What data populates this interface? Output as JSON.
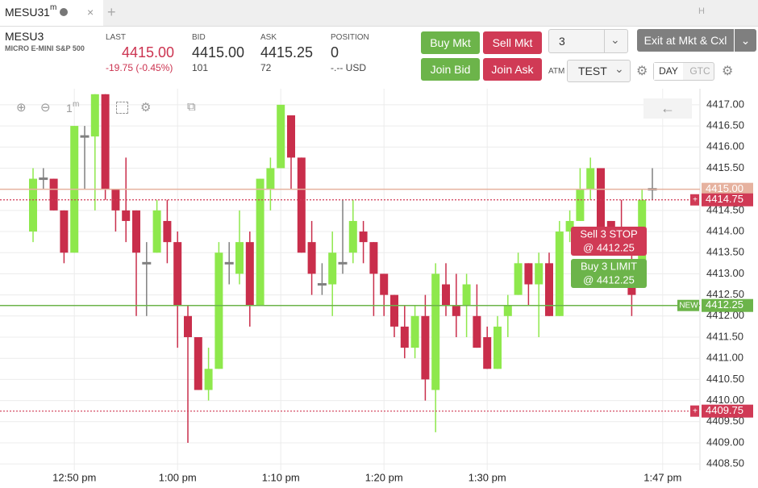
{
  "tab": {
    "symbol": "MESU3",
    "interval": "1",
    "unit": "m",
    "hotkey": "H"
  },
  "quote": {
    "symbol": "MESU3",
    "description": "MICRO E-MINI S&P 500",
    "last": {
      "label": "LAST",
      "value": "4415.00",
      "change": "-19.75 (-0.45%)"
    },
    "bid": {
      "label": "BID",
      "value": "4415.00",
      "size": "101"
    },
    "ask": {
      "label": "ASK",
      "value": "4415.25",
      "size": "72"
    },
    "position": {
      "label": "POSITION",
      "value": "0",
      "pnl": "-.-- USD"
    }
  },
  "buttons": {
    "buy_mkt": "Buy Mkt",
    "sell_mkt": "Sell Mkt",
    "quantity": "3",
    "exit": "Exit at Mkt & Cxl",
    "join_bid": "Join Bid",
    "join_ask": "Join Ask",
    "atm_label": "ATM",
    "atm": "TEST",
    "day": "DAY",
    "gtc": "GTC"
  },
  "toolbar": {
    "interval": "1",
    "unit": "m"
  },
  "chart_data": {
    "type": "candlestick",
    "up_color": "#8ee84c",
    "down_color": "#c92e4b",
    "doji_color": "#808080",
    "grid": true,
    "categories": [
      null,
      null,
      null,
      null,
      "12:50 pm",
      null,
      null,
      null,
      null,
      null,
      null,
      null,
      null,
      null,
      "1:00 pm",
      null,
      null,
      null,
      null,
      null,
      null,
      null,
      null,
      null,
      "1:10 pm",
      null,
      null,
      null,
      null,
      null,
      null,
      null,
      null,
      null,
      "1:20 pm",
      null,
      null,
      null,
      null,
      null,
      null,
      null,
      null,
      null,
      "1:30 pm",
      null,
      null,
      null,
      null,
      null,
      null,
      null,
      null,
      null,
      null,
      null,
      null,
      null,
      null,
      null,
      null,
      "1:47 pm"
    ],
    "open": [
      4414.0,
      4415.25,
      4415.25,
      4414.5,
      4413.5,
      4416.25,
      4416.25,
      4417.25,
      4415.0,
      4414.5,
      4414.5,
      4413.25,
      4413.5,
      4414.25,
      4413.75,
      4412.0,
      4411.5,
      4410.25,
      4410.75,
      4413.25,
      4413.0,
      4413.75,
      4412.25,
      4415.0,
      4415.5,
      4416.75,
      4415.75,
      4413.75,
      4412.75,
      4412.75,
      4413.25,
      4413.5,
      4414.0,
      4413.75,
      4413.0,
      4412.5,
      4411.75,
      4411.25,
      4412.0,
      4410.25,
      4412.75,
      4412.25,
      4412.25,
      4412.0,
      4411.5,
      4410.75,
      4412.0,
      4412.5,
      4413.25,
      4412.75,
      4413.25,
      4412.0,
      4414.0,
      4414.25,
      4415.0,
      4415.5,
      4414.25,
      4414.0,
      4413.25,
      4413.25,
      4415.0,
      null
    ],
    "high": [
      4415.5,
      4415.5,
      4415.25,
      4414.5,
      4416.5,
      4416.5,
      4417.25,
      4417.25,
      4415.0,
      4415.75,
      4414.5,
      4413.75,
      4414.75,
      4414.75,
      4414.0,
      4412.25,
      4411.5,
      4411.25,
      4413.75,
      4413.75,
      4414.5,
      4414.0,
      4415.25,
      4415.75,
      4417.0,
      4416.75,
      4415.75,
      4414.25,
      4413.25,
      4414.0,
      4414.75,
      4414.75,
      4414.25,
      4413.75,
      4413.0,
      4412.5,
      4412.25,
      4412.25,
      4412.5,
      4413.25,
      4413.25,
      4413.0,
      4413.0,
      4412.75,
      4411.75,
      4412.0,
      4412.5,
      4413.5,
      4413.25,
      4413.5,
      4413.5,
      4414.25,
      4414.5,
      4415.5,
      4415.75,
      4415.5,
      4414.25,
      4414.75,
      4413.75,
      4415.0,
      4415.5,
      null
    ],
    "low": [
      4413.75,
      4415.0,
      4414.5,
      4413.25,
      4413.5,
      4415.0,
      4414.5,
      4414.75,
      4414.0,
      4413.75,
      4412.0,
      4412.0,
      4413.5,
      4413.25,
      4411.25,
      4409.0,
      4410.25,
      4410.0,
      4410.75,
      4412.75,
      4412.75,
      4411.75,
      4412.25,
      4414.5,
      4415.5,
      4415.0,
      4413.5,
      4412.5,
      4412.5,
      4412.0,
      4413.0,
      4413.25,
      4413.25,
      4412.0,
      4412.0,
      4411.5,
      4411.0,
      4411.0,
      4410.0,
      4409.25,
      4412.0,
      4411.5,
      4411.5,
      4411.25,
      4410.75,
      4410.75,
      4411.5,
      4412.5,
      4412.25,
      4411.5,
      4412.0,
      4412.0,
      4413.75,
      4414.25,
      4414.75,
      4413.75,
      4413.75,
      4413.5,
      4412.0,
      4413.25,
      4414.75,
      null
    ],
    "close": [
      4415.25,
      4415.25,
      4414.5,
      4413.5,
      4416.5,
      4416.25,
      4417.25,
      4415.0,
      4414.5,
      4414.25,
      4413.5,
      4413.25,
      4414.5,
      4413.75,
      4412.25,
      4411.5,
      4410.25,
      4410.75,
      4413.5,
      4413.25,
      4413.75,
      4412.25,
      4415.25,
      4415.5,
      4417.0,
      4415.75,
      4413.5,
      4413.0,
      4412.75,
      4413.5,
      4413.25,
      4414.25,
      4413.75,
      4413.0,
      4412.5,
      4411.75,
      4411.25,
      4412.0,
      4410.5,
      4413.0,
      4412.25,
      4412.0,
      4412.75,
      4411.25,
      4410.75,
      4411.75,
      4412.25,
      4413.25,
      4412.75,
      4413.25,
      4412.0,
      4414.0,
      4414.25,
      4415.0,
      4415.5,
      4413.75,
      4413.75,
      4413.75,
      4412.5,
      4414.75,
      4415.0,
      null
    ],
    "ylim": [
      4408.35,
      4417.38
    ],
    "yticks": [
      {
        "value": 4408.5,
        "label": "4408.50"
      },
      {
        "value": 4409,
        "label": "4409.00"
      },
      {
        "value": 4409.5,
        "label": "4409.50"
      },
      {
        "value": 4410,
        "label": "4410.00"
      },
      {
        "value": 4410.5,
        "label": "4410.50"
      },
      {
        "value": 4411,
        "label": "4411.00"
      },
      {
        "value": 4411.5,
        "label": "4411.50"
      },
      {
        "value": 4412,
        "label": "4412.00"
      },
      {
        "value": 4412.5,
        "label": "4412.50"
      },
      {
        "value": 4413,
        "label": "4413.00"
      },
      {
        "value": 4413.5,
        "label": "4413.50"
      },
      {
        "value": 4414,
        "label": "4414.00"
      },
      {
        "value": 4414.5,
        "label": "4414.50"
      },
      {
        "value": 4415,
        "label": "4415.00"
      },
      {
        "value": 4415.5,
        "label": "4415.50"
      },
      {
        "value": 4416,
        "label": "4416.00"
      },
      {
        "value": 4416.5,
        "label": "4416.50"
      },
      {
        "value": 4417,
        "label": "4417.00"
      }
    ],
    "price_lines": [
      {
        "value": 4415,
        "label": "4415.00",
        "color": "#e6b29f",
        "style": "solid"
      },
      {
        "value": 4414.75,
        "label": "4414.75",
        "color": "#d03a55",
        "style": "dotted",
        "tag": "+"
      },
      {
        "value": 4412.25,
        "label": "4412.25",
        "color": "#6cb44a",
        "style": "solid",
        "tag": "NEW"
      },
      {
        "value": 4409.75,
        "label": "4409.75",
        "color": "#d03a55",
        "style": "dotted",
        "tag": "+"
      }
    ],
    "orders": [
      {
        "lines": [
          "Sell 3 STOP",
          "@ 4412.25"
        ],
        "color": "#d03a55"
      },
      {
        "lines": [
          "Buy 3 LIMIT",
          "@ 4412.25"
        ],
        "color": "#6cb44a"
      }
    ]
  }
}
